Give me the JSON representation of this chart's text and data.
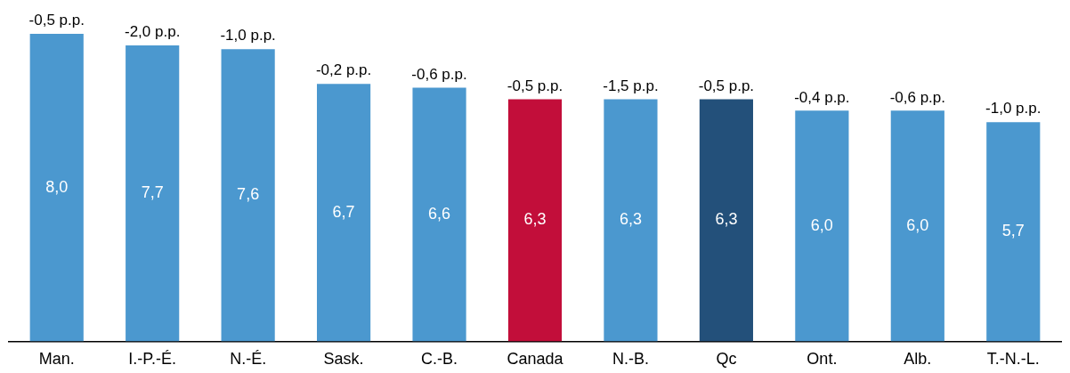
{
  "chart_data": {
    "type": "bar",
    "categories": [
      "Man.",
      "I.-P.-É.",
      "N.-É.",
      "Sask.",
      "C.-B.",
      "Canada",
      "N.-B.",
      "Qc",
      "Ont.",
      "Alb.",
      "T.-N.-L."
    ],
    "values": [
      8.0,
      7.7,
      7.6,
      6.7,
      6.6,
      6.3,
      6.3,
      6.3,
      6.0,
      6.0,
      5.7
    ],
    "colors": [
      "#4b98cf",
      "#4b98cf",
      "#4b98cf",
      "#4b98cf",
      "#4b98cf",
      "#c20e3a",
      "#4b98cf",
      "#23507a",
      "#4b98cf",
      "#4b98cf",
      "#4b98cf"
    ],
    "value_labels": [
      "8,0",
      "7,7",
      "7,6",
      "6,7",
      "6,6",
      "6,3",
      "6,3",
      "6,3",
      "6,0",
      "6,0",
      "5,7"
    ],
    "tick_labels": "x",
    "grid": false,
    "legend": false,
    "annotations": [
      {
        "text": "-0,5 p.p.",
        "x": "Man.",
        "y": 8.0
      },
      {
        "text": "-2,0 p.p.",
        "x": "I.-P.-É.",
        "y": 7.7
      },
      {
        "text": "-1,0 p.p.",
        "x": "N.-É.",
        "y": 7.6
      },
      {
        "text": "-0,2 p.p.",
        "x": "Sask.",
        "y": 6.7
      },
      {
        "text": "-0,6 p.p.",
        "x": "C.-B.",
        "y": 6.6
      },
      {
        "text": "-0,5 p.p.",
        "x": "Canada",
        "y": 6.3
      },
      {
        "text": "-1,5 p.p.",
        "x": "N.-B.",
        "y": 6.3
      },
      {
        "text": "-0,5 p.p.",
        "x": "Qc",
        "y": 6.3
      },
      {
        "text": "-0,4 p.p.",
        "x": "Ont.",
        "y": 6.0
      },
      {
        "text": "-0,6 p.p.",
        "x": "Alb.",
        "y": 6.0
      },
      {
        "text": "-1,0 p.p.",
        "x": "T.-N.-L.",
        "y": 5.7
      }
    ]
  }
}
